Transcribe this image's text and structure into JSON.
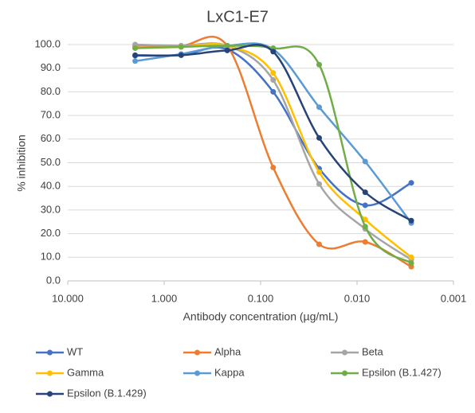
{
  "chart_data": {
    "type": "line",
    "title": "LxC1-E7",
    "x_label": "Antibody concentration (µg/mL)",
    "y_label": "% inhibition",
    "x": [
      2,
      0.667,
      0.222,
      0.0741,
      0.0247,
      0.00823,
      0.00274
    ],
    "xscale": "log",
    "xlim": [
      10,
      0.001
    ],
    "xticks": [
      {
        "value": 10,
        "label": "10.000"
      },
      {
        "value": 1,
        "label": "1.000"
      },
      {
        "value": 0.1,
        "label": "0.100"
      },
      {
        "value": 0.01,
        "label": "0.010"
      },
      {
        "value": 0.001,
        "label": "0.001"
      }
    ],
    "ylim": [
      0,
      100
    ],
    "yticks": [
      {
        "value": 0,
        "label": "0.0"
      },
      {
        "value": 10,
        "label": "10.0"
      },
      {
        "value": 20,
        "label": "20.0"
      },
      {
        "value": 30,
        "label": "30.0"
      },
      {
        "value": 40,
        "label": "40.0"
      },
      {
        "value": 50,
        "label": "50.0"
      },
      {
        "value": 60,
        "label": "60.0"
      },
      {
        "value": 70,
        "label": "70.0"
      },
      {
        "value": 80,
        "label": "80.0"
      },
      {
        "value": 90,
        "label": "90.0"
      },
      {
        "value": 100,
        "label": "100.0"
      }
    ],
    "grid": true,
    "legend": "bottom",
    "series": [
      {
        "name": "WT",
        "color": "#4472c4",
        "values": [
          95.3,
          95.6,
          98,
          80,
          47.5,
          32,
          41.5
        ]
      },
      {
        "name": "Alpha",
        "color": "#ed7d31",
        "values": [
          99.5,
          99.5,
          99.5,
          48,
          15.5,
          16.5,
          6
        ]
      },
      {
        "name": "Beta",
        "color": "#a5a5a5",
        "values": [
          100,
          99.5,
          99.5,
          85,
          41,
          22,
          9
        ]
      },
      {
        "name": "Gamma",
        "color": "#ffc000",
        "values": [
          98.5,
          99,
          99.5,
          88,
          46,
          26,
          10
        ]
      },
      {
        "name": "Kappa",
        "color": "#5b9bd5",
        "values": [
          93,
          96,
          99.5,
          98,
          73.5,
          50.5,
          24.5
        ]
      },
      {
        "name": "Epsilon (B.1.427)",
        "color": "#70ad47",
        "values": [
          98.5,
          99,
          99.5,
          98.5,
          91.5,
          23,
          7.5
        ]
      },
      {
        "name": "Epsilon (B.1.429)",
        "color": "#264478",
        "values": [
          95.5,
          95.5,
          97.5,
          97,
          60.5,
          37.5,
          25.5
        ]
      }
    ]
  }
}
